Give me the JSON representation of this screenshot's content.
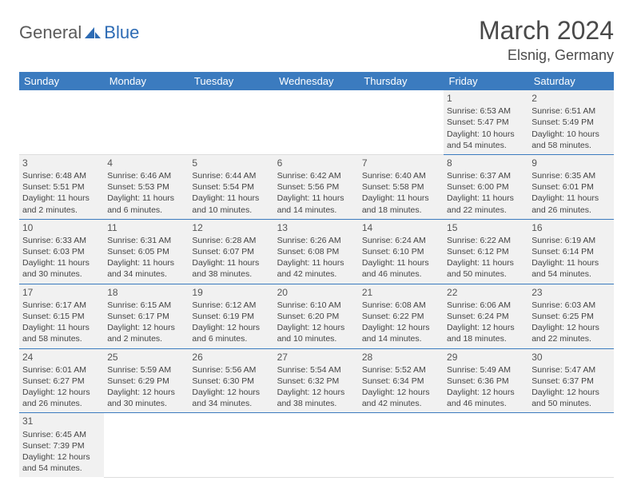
{
  "logo": {
    "general": "General",
    "blue": "Blue"
  },
  "title": "March 2024",
  "location": "Elsnig, Germany",
  "colors": {
    "header_bg": "#3b7bbf",
    "header_text": "#ffffff",
    "cell_bg": "#f1f1f1",
    "cell_border": "#3b7bbf",
    "text": "#444444",
    "title_text": "#4a4a4a",
    "logo_gray": "#5a5a5a",
    "logo_blue": "#2d6bb4"
  },
  "weekdays": [
    "Sunday",
    "Monday",
    "Tuesday",
    "Wednesday",
    "Thursday",
    "Friday",
    "Saturday"
  ],
  "weeks": [
    [
      null,
      null,
      null,
      null,
      null,
      {
        "day": "1",
        "sunrise": "Sunrise: 6:53 AM",
        "sunset": "Sunset: 5:47 PM",
        "daylight1": "Daylight: 10 hours",
        "daylight2": "and 54 minutes."
      },
      {
        "day": "2",
        "sunrise": "Sunrise: 6:51 AM",
        "sunset": "Sunset: 5:49 PM",
        "daylight1": "Daylight: 10 hours",
        "daylight2": "and 58 minutes."
      }
    ],
    [
      {
        "day": "3",
        "sunrise": "Sunrise: 6:48 AM",
        "sunset": "Sunset: 5:51 PM",
        "daylight1": "Daylight: 11 hours",
        "daylight2": "and 2 minutes."
      },
      {
        "day": "4",
        "sunrise": "Sunrise: 6:46 AM",
        "sunset": "Sunset: 5:53 PM",
        "daylight1": "Daylight: 11 hours",
        "daylight2": "and 6 minutes."
      },
      {
        "day": "5",
        "sunrise": "Sunrise: 6:44 AM",
        "sunset": "Sunset: 5:54 PM",
        "daylight1": "Daylight: 11 hours",
        "daylight2": "and 10 minutes."
      },
      {
        "day": "6",
        "sunrise": "Sunrise: 6:42 AM",
        "sunset": "Sunset: 5:56 PM",
        "daylight1": "Daylight: 11 hours",
        "daylight2": "and 14 minutes."
      },
      {
        "day": "7",
        "sunrise": "Sunrise: 6:40 AM",
        "sunset": "Sunset: 5:58 PM",
        "daylight1": "Daylight: 11 hours",
        "daylight2": "and 18 minutes."
      },
      {
        "day": "8",
        "sunrise": "Sunrise: 6:37 AM",
        "sunset": "Sunset: 6:00 PM",
        "daylight1": "Daylight: 11 hours",
        "daylight2": "and 22 minutes."
      },
      {
        "day": "9",
        "sunrise": "Sunrise: 6:35 AM",
        "sunset": "Sunset: 6:01 PM",
        "daylight1": "Daylight: 11 hours",
        "daylight2": "and 26 minutes."
      }
    ],
    [
      {
        "day": "10",
        "sunrise": "Sunrise: 6:33 AM",
        "sunset": "Sunset: 6:03 PM",
        "daylight1": "Daylight: 11 hours",
        "daylight2": "and 30 minutes."
      },
      {
        "day": "11",
        "sunrise": "Sunrise: 6:31 AM",
        "sunset": "Sunset: 6:05 PM",
        "daylight1": "Daylight: 11 hours",
        "daylight2": "and 34 minutes."
      },
      {
        "day": "12",
        "sunrise": "Sunrise: 6:28 AM",
        "sunset": "Sunset: 6:07 PM",
        "daylight1": "Daylight: 11 hours",
        "daylight2": "and 38 minutes."
      },
      {
        "day": "13",
        "sunrise": "Sunrise: 6:26 AM",
        "sunset": "Sunset: 6:08 PM",
        "daylight1": "Daylight: 11 hours",
        "daylight2": "and 42 minutes."
      },
      {
        "day": "14",
        "sunrise": "Sunrise: 6:24 AM",
        "sunset": "Sunset: 6:10 PM",
        "daylight1": "Daylight: 11 hours",
        "daylight2": "and 46 minutes."
      },
      {
        "day": "15",
        "sunrise": "Sunrise: 6:22 AM",
        "sunset": "Sunset: 6:12 PM",
        "daylight1": "Daylight: 11 hours",
        "daylight2": "and 50 minutes."
      },
      {
        "day": "16",
        "sunrise": "Sunrise: 6:19 AM",
        "sunset": "Sunset: 6:14 PM",
        "daylight1": "Daylight: 11 hours",
        "daylight2": "and 54 minutes."
      }
    ],
    [
      {
        "day": "17",
        "sunrise": "Sunrise: 6:17 AM",
        "sunset": "Sunset: 6:15 PM",
        "daylight1": "Daylight: 11 hours",
        "daylight2": "and 58 minutes."
      },
      {
        "day": "18",
        "sunrise": "Sunrise: 6:15 AM",
        "sunset": "Sunset: 6:17 PM",
        "daylight1": "Daylight: 12 hours",
        "daylight2": "and 2 minutes."
      },
      {
        "day": "19",
        "sunrise": "Sunrise: 6:12 AM",
        "sunset": "Sunset: 6:19 PM",
        "daylight1": "Daylight: 12 hours",
        "daylight2": "and 6 minutes."
      },
      {
        "day": "20",
        "sunrise": "Sunrise: 6:10 AM",
        "sunset": "Sunset: 6:20 PM",
        "daylight1": "Daylight: 12 hours",
        "daylight2": "and 10 minutes."
      },
      {
        "day": "21",
        "sunrise": "Sunrise: 6:08 AM",
        "sunset": "Sunset: 6:22 PM",
        "daylight1": "Daylight: 12 hours",
        "daylight2": "and 14 minutes."
      },
      {
        "day": "22",
        "sunrise": "Sunrise: 6:06 AM",
        "sunset": "Sunset: 6:24 PM",
        "daylight1": "Daylight: 12 hours",
        "daylight2": "and 18 minutes."
      },
      {
        "day": "23",
        "sunrise": "Sunrise: 6:03 AM",
        "sunset": "Sunset: 6:25 PM",
        "daylight1": "Daylight: 12 hours",
        "daylight2": "and 22 minutes."
      }
    ],
    [
      {
        "day": "24",
        "sunrise": "Sunrise: 6:01 AM",
        "sunset": "Sunset: 6:27 PM",
        "daylight1": "Daylight: 12 hours",
        "daylight2": "and 26 minutes."
      },
      {
        "day": "25",
        "sunrise": "Sunrise: 5:59 AM",
        "sunset": "Sunset: 6:29 PM",
        "daylight1": "Daylight: 12 hours",
        "daylight2": "and 30 minutes."
      },
      {
        "day": "26",
        "sunrise": "Sunrise: 5:56 AM",
        "sunset": "Sunset: 6:30 PM",
        "daylight1": "Daylight: 12 hours",
        "daylight2": "and 34 minutes."
      },
      {
        "day": "27",
        "sunrise": "Sunrise: 5:54 AM",
        "sunset": "Sunset: 6:32 PM",
        "daylight1": "Daylight: 12 hours",
        "daylight2": "and 38 minutes."
      },
      {
        "day": "28",
        "sunrise": "Sunrise: 5:52 AM",
        "sunset": "Sunset: 6:34 PM",
        "daylight1": "Daylight: 12 hours",
        "daylight2": "and 42 minutes."
      },
      {
        "day": "29",
        "sunrise": "Sunrise: 5:49 AM",
        "sunset": "Sunset: 6:36 PM",
        "daylight1": "Daylight: 12 hours",
        "daylight2": "and 46 minutes."
      },
      {
        "day": "30",
        "sunrise": "Sunrise: 5:47 AM",
        "sunset": "Sunset: 6:37 PM",
        "daylight1": "Daylight: 12 hours",
        "daylight2": "and 50 minutes."
      }
    ],
    [
      {
        "day": "31",
        "sunrise": "Sunrise: 6:45 AM",
        "sunset": "Sunset: 7:39 PM",
        "daylight1": "Daylight: 12 hours",
        "daylight2": "and 54 minutes."
      },
      null,
      null,
      null,
      null,
      null,
      null
    ]
  ]
}
